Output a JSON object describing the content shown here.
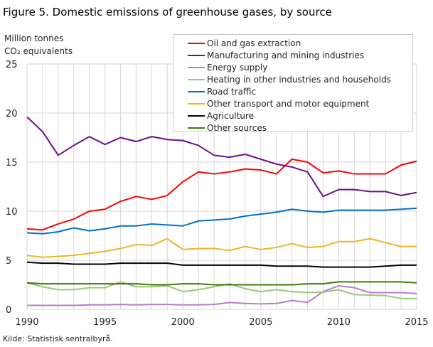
{
  "title": "Figure 5. Domestic emissions of greenhouse gases, by source",
  "source": "Kilde: Statistisk sentralbyrå.",
  "chart_data": {
    "type": "line",
    "title": "Figure 5. Domestic emissions of greenhouse gases, by source",
    "ylabel_line1": "Million tonnes",
    "ylabel_line2": "CO₂ equivalents",
    "xlim": [
      1990,
      2015
    ],
    "ylim": [
      0,
      25
    ],
    "yticks": [
      0,
      5,
      10,
      15,
      20,
      25
    ],
    "xticks": [
      1990,
      1995,
      2000,
      2005,
      2010,
      2015
    ],
    "grid": true,
    "legend_position": "top-right",
    "x": [
      1990,
      1991,
      1992,
      1993,
      1994,
      1995,
      1996,
      1997,
      1998,
      1999,
      2000,
      2001,
      2002,
      2003,
      2004,
      2005,
      2006,
      2007,
      2008,
      2009,
      2010,
      2011,
      2012,
      2013,
      2014,
      2015
    ],
    "series": [
      {
        "name": "Oil and gas extraction",
        "color": "#ff0000",
        "values": [
          8.2,
          8.1,
          8.7,
          9.2,
          10.0,
          10.2,
          11.0,
          11.5,
          11.2,
          11.6,
          13.0,
          14.0,
          13.8,
          14.0,
          14.3,
          14.2,
          13.8,
          15.3,
          15.0,
          13.9,
          14.1,
          13.8,
          13.8,
          13.8,
          14.7,
          15.1
        ]
      },
      {
        "name": "Manufacturing and mining industries",
        "color": "#6a0f8e",
        "values": [
          19.6,
          18.1,
          15.7,
          16.7,
          17.6,
          16.8,
          17.5,
          17.1,
          17.6,
          17.3,
          17.2,
          16.7,
          15.7,
          15.5,
          15.8,
          15.3,
          14.8,
          14.5,
          14.0,
          11.5,
          12.2,
          12.2,
          12.0,
          12.0,
          11.6,
          11.9
        ]
      },
      {
        "name": "Energy supply",
        "color": "#b57fc9",
        "values": [
          0.4,
          0.4,
          0.4,
          0.4,
          0.45,
          0.45,
          0.5,
          0.45,
          0.5,
          0.5,
          0.45,
          0.45,
          0.5,
          0.7,
          0.6,
          0.55,
          0.6,
          0.9,
          0.7,
          1.8,
          2.4,
          2.2,
          1.7,
          1.7,
          1.7,
          1.6
        ]
      },
      {
        "name": "Heating in other industries and households",
        "color": "#9dc67a",
        "values": [
          2.7,
          2.3,
          2.0,
          2.0,
          2.2,
          2.2,
          2.8,
          2.3,
          2.3,
          2.4,
          1.8,
          2.0,
          2.3,
          2.6,
          2.1,
          1.8,
          2.0,
          1.8,
          1.7,
          1.75,
          2.0,
          1.5,
          1.45,
          1.4,
          1.1,
          1.1
        ]
      },
      {
        "name": "Road traffic",
        "color": "#0070c9",
        "values": [
          7.8,
          7.7,
          7.9,
          8.3,
          8.0,
          8.2,
          8.5,
          8.5,
          8.7,
          8.6,
          8.5,
          9.0,
          9.1,
          9.2,
          9.5,
          9.7,
          9.9,
          10.2,
          10.0,
          9.9,
          10.1,
          10.1,
          10.1,
          10.1,
          10.2,
          10.3
        ]
      },
      {
        "name": "Other transport and motor equipment",
        "color": "#f0b323",
        "values": [
          5.5,
          5.3,
          5.4,
          5.5,
          5.7,
          5.9,
          6.2,
          6.6,
          6.5,
          7.2,
          6.1,
          6.2,
          6.2,
          6.0,
          6.4,
          6.1,
          6.3,
          6.7,
          6.3,
          6.4,
          6.9,
          6.9,
          7.2,
          6.8,
          6.4,
          6.4
        ]
      },
      {
        "name": "Agriculture",
        "color": "#000000",
        "values": [
          4.8,
          4.7,
          4.7,
          4.6,
          4.6,
          4.6,
          4.7,
          4.7,
          4.7,
          4.7,
          4.5,
          4.5,
          4.5,
          4.5,
          4.5,
          4.5,
          4.4,
          4.4,
          4.4,
          4.3,
          4.3,
          4.3,
          4.3,
          4.4,
          4.5,
          4.5
        ]
      },
      {
        "name": "Other sources",
        "color": "#3a7d0a",
        "values": [
          2.7,
          2.6,
          2.6,
          2.6,
          2.6,
          2.6,
          2.6,
          2.6,
          2.5,
          2.5,
          2.6,
          2.6,
          2.5,
          2.5,
          2.5,
          2.5,
          2.5,
          2.5,
          2.6,
          2.6,
          2.8,
          2.8,
          2.8,
          2.8,
          2.8,
          2.7
        ]
      }
    ]
  }
}
